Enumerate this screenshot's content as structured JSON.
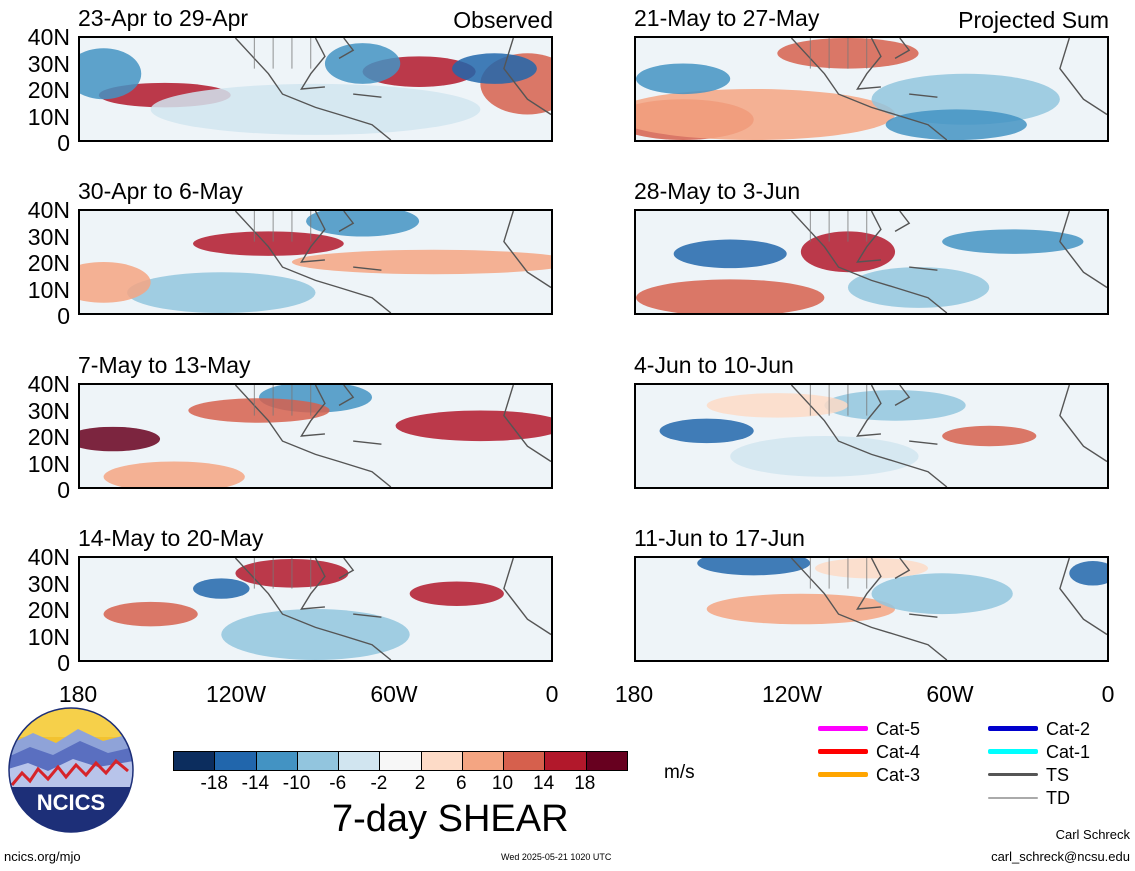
{
  "panels": [
    {
      "title": "23-Apr to 29-Apr",
      "tag": "Observed"
    },
    {
      "title": "21-May to 27-May",
      "tag": "Projected Sum"
    },
    {
      "title": "30-Apr to 6-May",
      "tag": ""
    },
    {
      "title": "28-May to 3-Jun",
      "tag": ""
    },
    {
      "title": "7-May to 13-May",
      "tag": ""
    },
    {
      "title": "4-Jun to 10-Jun",
      "tag": ""
    },
    {
      "title": "14-May to 20-May",
      "tag": ""
    },
    {
      "title": "11-Jun to 17-Jun",
      "tag": ""
    }
  ],
  "lat_labels": [
    "40N",
    "30N",
    "20N",
    "10N",
    "0"
  ],
  "lon_labels": [
    "180",
    "120W",
    "60W",
    "0"
  ],
  "colorbar": {
    "ticks": [
      "-18",
      "-14",
      "-10",
      "-6",
      "-2",
      "2",
      "6",
      "10",
      "14",
      "18"
    ],
    "colors": [
      "#0c2d5e",
      "#2166ac",
      "#4393c3",
      "#92c5de",
      "#d1e5f0",
      "#f7f7f7",
      "#fddbc7",
      "#f4a582",
      "#d6604d",
      "#b2182b",
      "#67001f"
    ],
    "units": "m/s"
  },
  "title": "7-day SHEAR",
  "legend": [
    {
      "label": "Cat-5",
      "color": "#ff00ff"
    },
    {
      "label": "Cat-4",
      "color": "#ff0000"
    },
    {
      "label": "Cat-3",
      "color": "#ffa500"
    },
    {
      "label": "Cat-2",
      "color": "#0000cd"
    },
    {
      "label": "Cat-1",
      "color": "#00ffff"
    },
    {
      "label": "TS",
      "color": "#555555"
    },
    {
      "label": "TD",
      "color": "#aaaaaa"
    }
  ],
  "logo_text": "NCICS",
  "footer": {
    "website": "ncics.org/mjo",
    "timestamp": "Wed 2025-05-21 1020 UTC",
    "author": "Carl Schreck",
    "email": "carl_schreck@ncsu.edu"
  }
}
